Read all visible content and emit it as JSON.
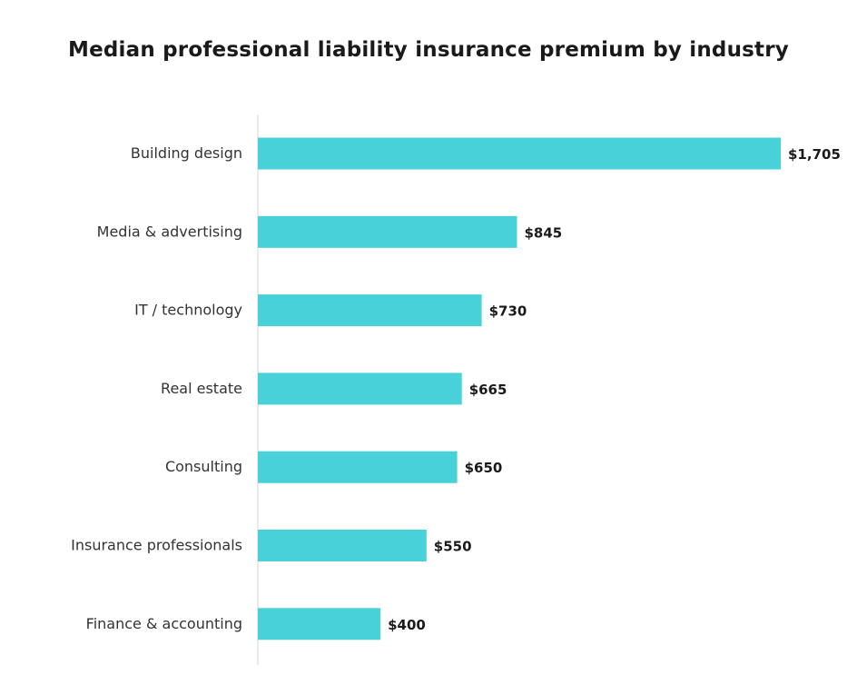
{
  "chart_data": {
    "type": "bar",
    "orientation": "horizontal",
    "title": "Median professional liability insurance premium by industry",
    "categories": [
      "Building design",
      "Media & advertising",
      "IT / technology",
      "Real estate",
      "Consulting",
      "Insurance professionals",
      "Finance & accounting"
    ],
    "values": [
      1705,
      845,
      730,
      665,
      650,
      550,
      400
    ],
    "value_labels": [
      "$1,705",
      "$845",
      "$730",
      "$665",
      "$650",
      "$550",
      "$400"
    ],
    "xlabel": "",
    "ylabel": "",
    "xlim": [
      0,
      1705
    ],
    "grid": false,
    "legend": "none",
    "bar_color": "#48d1d8",
    "axis_color": "#d6d6d6"
  }
}
